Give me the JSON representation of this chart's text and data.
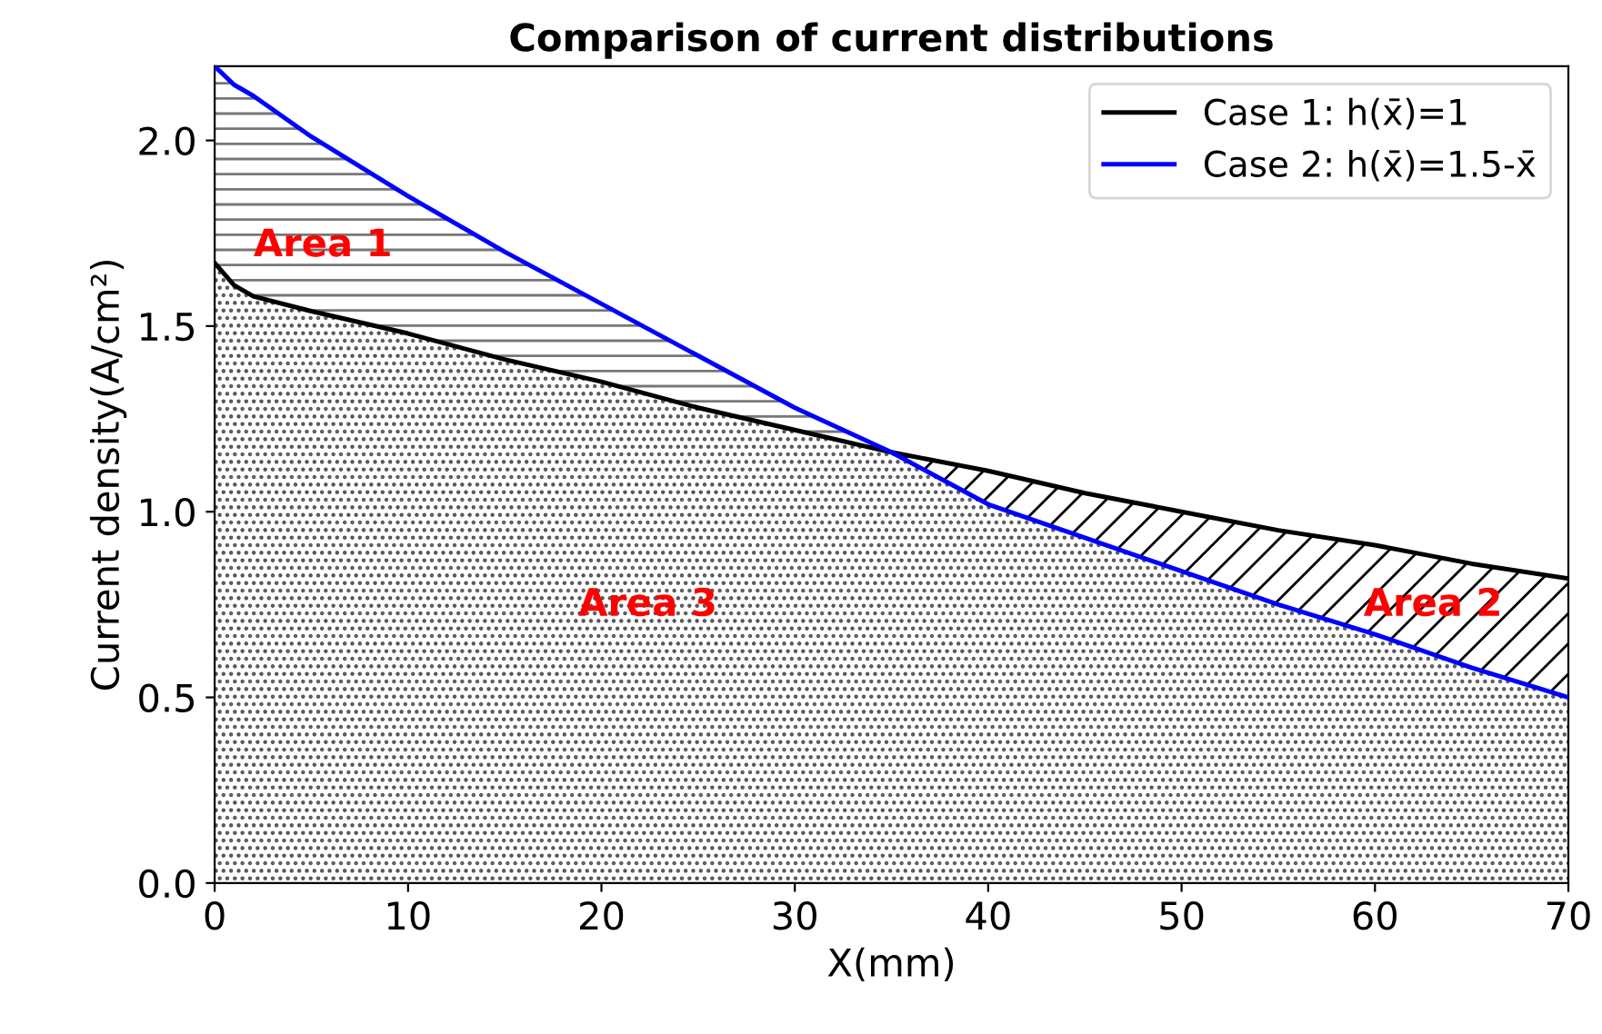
{
  "chart_data": {
    "type": "line",
    "title": "Comparison of current distributions",
    "xlabel": "X(mm)",
    "ylabel": "Current density(A/cm²)",
    "x": [
      0,
      1,
      2,
      5,
      10,
      15,
      20,
      25,
      30,
      35,
      40,
      45,
      50,
      55,
      60,
      65,
      70
    ],
    "series": [
      {
        "name": "Case 1: h(x̄)=1",
        "type": "area",
        "color": "#000000",
        "values": [
          1.67,
          1.61,
          1.58,
          1.54,
          1.48,
          1.41,
          1.35,
          1.28,
          1.22,
          1.16,
          1.11,
          1.05,
          1.0,
          0.95,
          0.91,
          0.86,
          0.82
        ],
        "lower": [
          null,
          null,
          null,
          null,
          null,
          null,
          null,
          null,
          null,
          1.16,
          1.02,
          0.93,
          0.84,
          0.75,
          0.67,
          0.58,
          0.5
        ],
        "upper": [
          null,
          null,
          null,
          null,
          null,
          null,
          null,
          null,
          null,
          1.16,
          1.11,
          1.05,
          1.0,
          0.95,
          0.91,
          0.86,
          0.82
        ]
      },
      {
        "name": "Case 2: h(x̄)=1.5-x̄",
        "color": "#0000ff",
        "values": [
          2.2,
          2.15,
          2.12,
          2.01,
          1.85,
          1.7,
          1.56,
          1.42,
          1.28,
          1.16,
          1.02,
          0.93,
          0.84,
          0.75,
          0.67,
          0.58,
          0.5
        ],
        "lower": [
          1.67,
          1.61,
          1.58,
          1.54,
          1.48,
          1.41,
          1.35,
          1.28,
          1.22,
          1.16,
          null,
          null,
          null,
          null,
          null,
          null,
          null
        ],
        "upper": [
          2.2,
          2.15,
          2.12,
          2.01,
          1.85,
          1.7,
          1.56,
          1.42,
          1.28,
          1.16,
          null,
          null,
          null,
          null,
          null,
          null,
          null
        ]
      }
    ],
    "xlim": [
      0,
      70
    ],
    "ylim": [
      0,
      2.2
    ],
    "xticks": [
      0,
      10,
      20,
      30,
      40,
      50,
      60,
      70
    ],
    "yticks": [
      {
        "value": 0,
        "label": "0.0"
      },
      0.5,
      {
        "value": 1,
        "label": "1.0"
      },
      1.5,
      {
        "value": 2,
        "label": "2.0"
      }
    ],
    "grid": false,
    "legend": "top right",
    "marker": "none",
    "line_style": "solid",
    "annotations": [
      "Area 1",
      "Area 3",
      "Area 2"
    ]
  }
}
